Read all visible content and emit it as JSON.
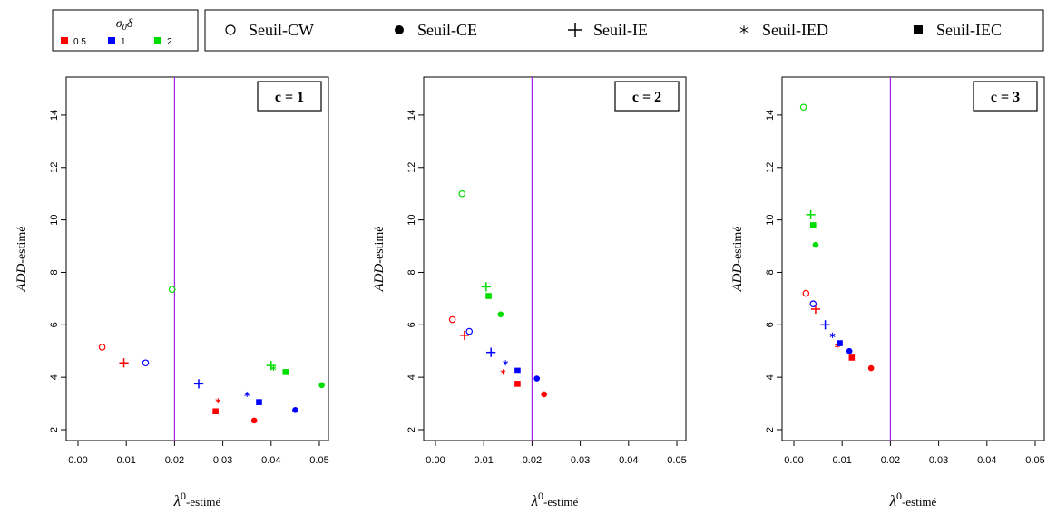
{
  "legend_sigma": {
    "title": "σ0δ",
    "entries": [
      {
        "label": "0.5",
        "color": "#ff0000"
      },
      {
        "label": "1",
        "color": "#0000ff"
      },
      {
        "label": "2",
        "color": "#00dd00"
      }
    ]
  },
  "legend_methods": [
    {
      "label": "Seuil-CW",
      "marker": "open-circle"
    },
    {
      "label": "Seuil-CE",
      "marker": "filled-circle"
    },
    {
      "label": "Seuil-IE",
      "marker": "plus"
    },
    {
      "label": "Seuil-IED",
      "marker": "asterisk"
    },
    {
      "label": "Seuil-IEC",
      "marker": "filled-square"
    }
  ],
  "chart_data": [
    {
      "type": "scatter",
      "panel_label": "c = 1",
      "xlabel_sym": "λ",
      "xlabel_sup": "0",
      "xlabel_text": "-estimé",
      "ylabel_italic": "ADD",
      "ylabel_text": "-estimé",
      "xlim": [
        0,
        0.05
      ],
      "ylim": [
        2,
        15
      ],
      "xticks": [
        "0.00",
        "0.01",
        "0.02",
        "0.03",
        "0.04",
        "0.05"
      ],
      "yticks": [
        "2",
        "4",
        "6",
        "8",
        "10",
        "12",
        "14"
      ],
      "reference_line_x": 0.02,
      "points": [
        {
          "method": "Seuil-CW",
          "sigma": "0.5",
          "x": 0.005,
          "y": 5.15
        },
        {
          "method": "Seuil-IE",
          "sigma": "0.5",
          "x": 0.0095,
          "y": 4.55
        },
        {
          "method": "Seuil-IED",
          "sigma": "0.5",
          "x": 0.029,
          "y": 3.1
        },
        {
          "method": "Seuil-IEC",
          "sigma": "0.5",
          "x": 0.0285,
          "y": 2.7
        },
        {
          "method": "Seuil-CE",
          "sigma": "0.5",
          "x": 0.0365,
          "y": 2.35
        },
        {
          "method": "Seuil-CW",
          "sigma": "1",
          "x": 0.014,
          "y": 4.55
        },
        {
          "method": "Seuil-IE",
          "sigma": "1",
          "x": 0.025,
          "y": 3.75
        },
        {
          "method": "Seuil-IED",
          "sigma": "1",
          "x": 0.035,
          "y": 3.35
        },
        {
          "method": "Seuil-IEC",
          "sigma": "1",
          "x": 0.0375,
          "y": 3.05
        },
        {
          "method": "Seuil-CE",
          "sigma": "1",
          "x": 0.045,
          "y": 2.75
        },
        {
          "method": "Seuil-CW",
          "sigma": "2",
          "x": 0.0195,
          "y": 7.35
        },
        {
          "method": "Seuil-IE",
          "sigma": "2",
          "x": 0.04,
          "y": 4.45
        },
        {
          "method": "Seuil-IED",
          "sigma": "2",
          "x": 0.0405,
          "y": 4.35
        },
        {
          "method": "Seuil-IEC",
          "sigma": "2",
          "x": 0.043,
          "y": 4.2
        },
        {
          "method": "Seuil-CE",
          "sigma": "2",
          "x": 0.0505,
          "y": 3.7
        }
      ]
    },
    {
      "type": "scatter",
      "panel_label": "c = 2",
      "xlabel_sym": "λ",
      "xlabel_sup": "0",
      "xlabel_text": "-estimé",
      "ylabel_italic": "ADD",
      "ylabel_text": "-estimé",
      "xlim": [
        0,
        0.05
      ],
      "ylim": [
        2,
        15
      ],
      "xticks": [
        "0.00",
        "0.01",
        "0.02",
        "0.03",
        "0.04",
        "0.05"
      ],
      "yticks": [
        "2",
        "4",
        "6",
        "8",
        "10",
        "12",
        "14"
      ],
      "reference_line_x": 0.02,
      "points": [
        {
          "method": "Seuil-CW",
          "sigma": "0.5",
          "x": 0.0035,
          "y": 6.2
        },
        {
          "method": "Seuil-IE",
          "sigma": "0.5",
          "x": 0.006,
          "y": 5.6
        },
        {
          "method": "Seuil-IED",
          "sigma": "0.5",
          "x": 0.014,
          "y": 4.2
        },
        {
          "method": "Seuil-IEC",
          "sigma": "0.5",
          "x": 0.017,
          "y": 3.75
        },
        {
          "method": "Seuil-CE",
          "sigma": "0.5",
          "x": 0.0225,
          "y": 3.35
        },
        {
          "method": "Seuil-CW",
          "sigma": "1",
          "x": 0.007,
          "y": 5.75
        },
        {
          "method": "Seuil-IE",
          "sigma": "1",
          "x": 0.0115,
          "y": 4.95
        },
        {
          "method": "Seuil-IED",
          "sigma": "1",
          "x": 0.0145,
          "y": 4.55
        },
        {
          "method": "Seuil-IEC",
          "sigma": "1",
          "x": 0.017,
          "y": 4.25
        },
        {
          "method": "Seuil-CE",
          "sigma": "1",
          "x": 0.021,
          "y": 3.95
        },
        {
          "method": "Seuil-CW",
          "sigma": "2",
          "x": 0.0055,
          "y": 11.0
        },
        {
          "method": "Seuil-IE",
          "sigma": "2",
          "x": 0.0105,
          "y": 7.45
        },
        {
          "method": "Seuil-IEC",
          "sigma": "2",
          "x": 0.011,
          "y": 7.1
        },
        {
          "method": "Seuil-CE",
          "sigma": "2",
          "x": 0.0135,
          "y": 6.4
        }
      ]
    },
    {
      "type": "scatter",
      "panel_label": "c = 3",
      "xlabel_sym": "λ",
      "xlabel_sup": "0",
      "xlabel_text": "-estimé",
      "ylabel_italic": "ADD",
      "ylabel_text": "-estimé",
      "xlim": [
        0,
        0.05
      ],
      "ylim": [
        2,
        15
      ],
      "xticks": [
        "0.00",
        "0.01",
        "0.02",
        "0.03",
        "0.04",
        "0.05"
      ],
      "yticks": [
        "2",
        "4",
        "6",
        "8",
        "10",
        "12",
        "14"
      ],
      "reference_line_x": 0.02,
      "points": [
        {
          "method": "Seuil-CW",
          "sigma": "0.5",
          "x": 0.0025,
          "y": 7.2
        },
        {
          "method": "Seuil-IE",
          "sigma": "0.5",
          "x": 0.0045,
          "y": 6.6
        },
        {
          "method": "Seuil-IED",
          "sigma": "0.5",
          "x": 0.009,
          "y": 5.2
        },
        {
          "method": "Seuil-IEC",
          "sigma": "0.5",
          "x": 0.012,
          "y": 4.75
        },
        {
          "method": "Seuil-CE",
          "sigma": "0.5",
          "x": 0.016,
          "y": 4.35
        },
        {
          "method": "Seuil-CW",
          "sigma": "1",
          "x": 0.004,
          "y": 6.8
        },
        {
          "method": "Seuil-IE",
          "sigma": "1",
          "x": 0.0065,
          "y": 6.0
        },
        {
          "method": "Seuil-IED",
          "sigma": "1",
          "x": 0.008,
          "y": 5.6
        },
        {
          "method": "Seuil-IEC",
          "sigma": "1",
          "x": 0.0095,
          "y": 5.3
        },
        {
          "method": "Seuil-CE",
          "sigma": "1",
          "x": 0.0115,
          "y": 5.0
        },
        {
          "method": "Seuil-CW",
          "sigma": "2",
          "x": 0.002,
          "y": 14.3
        },
        {
          "method": "Seuil-IE",
          "sigma": "2",
          "x": 0.0035,
          "y": 10.2
        },
        {
          "method": "Seuil-IEC",
          "sigma": "2",
          "x": 0.004,
          "y": 9.8
        },
        {
          "method": "Seuil-CE",
          "sigma": "2",
          "x": 0.0045,
          "y": 9.05
        }
      ]
    }
  ]
}
